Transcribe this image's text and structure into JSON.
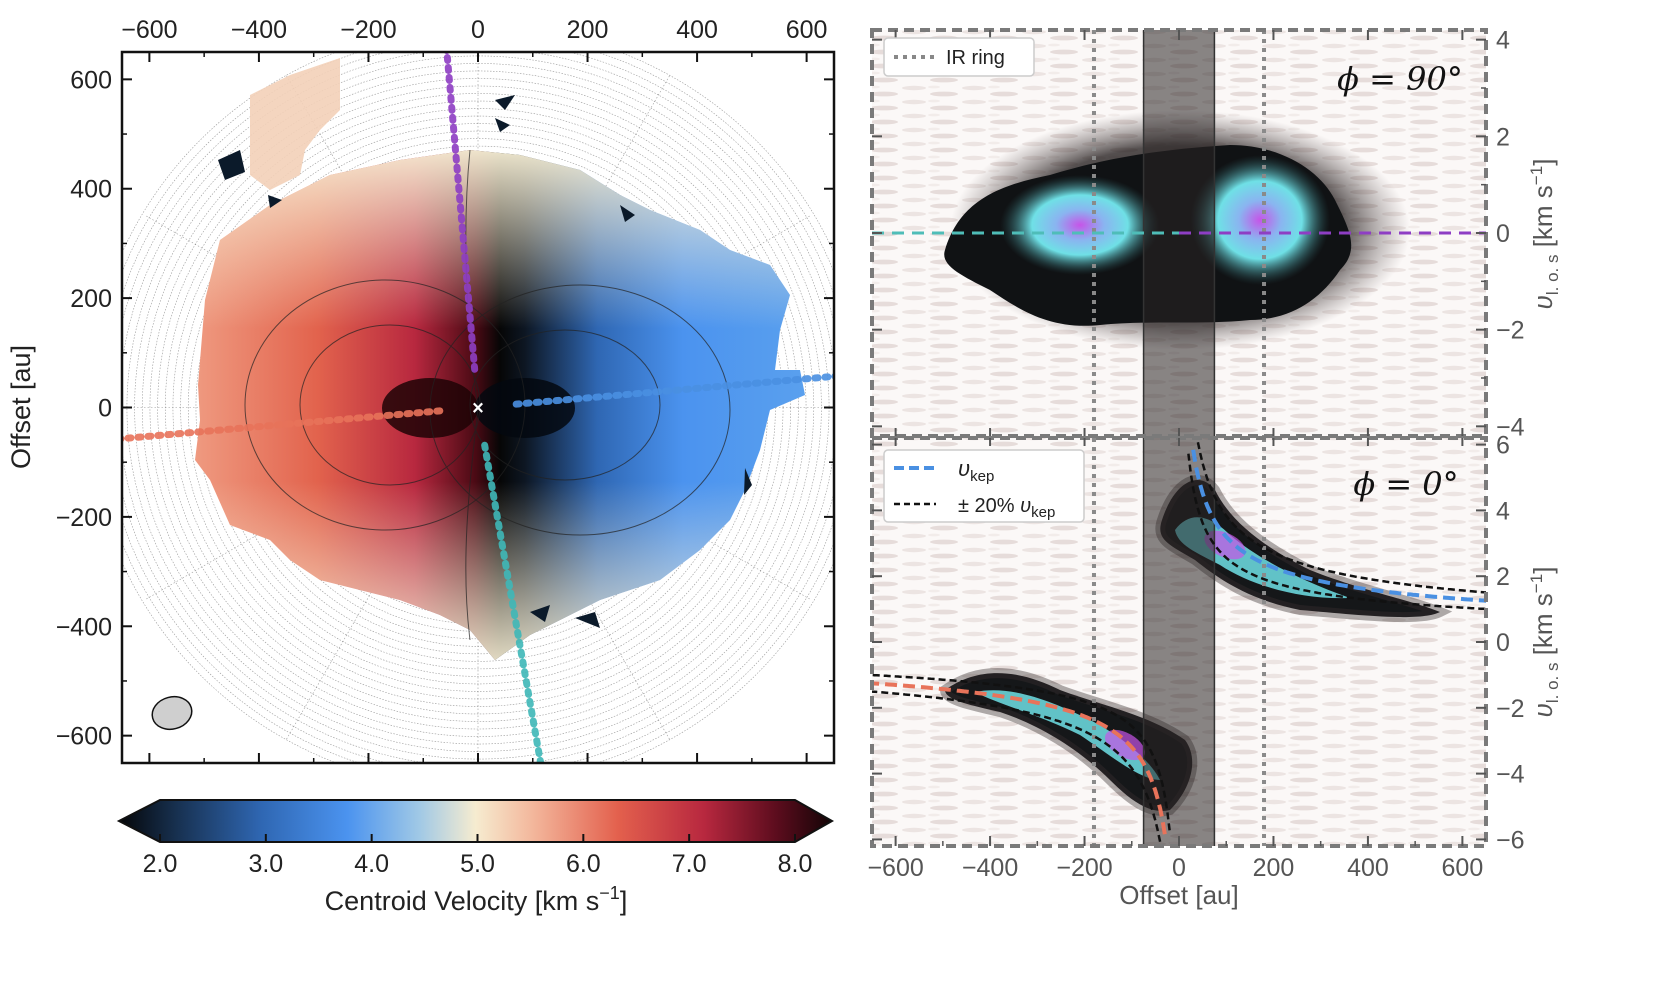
{
  "chart_data": [
    {
      "type": "heatmap",
      "panel": "moment-map",
      "xlim": [
        -650,
        650
      ],
      "ylim": [
        -650,
        650
      ],
      "x_ticks": [
        -600,
        -400,
        -200,
        0,
        200,
        400,
        600
      ],
      "y_ticks": [
        -600,
        -400,
        -200,
        0,
        200,
        400,
        600
      ],
      "ylabel": "Offset [au]",
      "x_axis_position": "top",
      "grid": "polar",
      "center_marker": "×",
      "colorbar": {
        "label_text": "Centroid Velocity [km s",
        "label_exp": "−1",
        "label_close": "]",
        "range": [
          2.0,
          8.0
        ],
        "ticks": [
          "2.0",
          "3.0",
          "4.0",
          "5.0",
          "6.0",
          "7.0",
          "8.0"
        ],
        "tick_values": [
          2.0,
          3.0,
          4.0,
          5.0,
          6.0,
          7.0,
          8.0
        ],
        "colormap": "diverging: black-blue-cream-red-black"
      },
      "cuts": [
        {
          "angle_deg": 95,
          "color": "#8E3EC4"
        },
        {
          "angle_deg": 5,
          "color": "#4A90E2"
        },
        {
          "angle_deg": -80,
          "color": "#3FB8B8"
        },
        {
          "angle_deg": 185,
          "color": "#E8735A"
        }
      ],
      "beam": "ellipse lower-left"
    },
    {
      "type": "heatmap",
      "panel": "pv-diagram-phi-90",
      "annotation": "ϕ = 90°",
      "xlim": [
        -650,
        650
      ],
      "ylim": [
        -4.2,
        4.2
      ],
      "y_ticks": [
        -4,
        -2,
        0,
        2,
        4
      ],
      "ylabel_main": "υ",
      "ylabel_sub": "l. o. s",
      "ylabel_unit": " [km s",
      "ylabel_exp": "−1",
      "ylabel_close": "]",
      "legend": {
        "position": "top-left",
        "items": [
          "IR ring"
        ]
      },
      "ir_ring_offsets": [
        -180,
        180
      ],
      "masked_band": [
        -75,
        75
      ],
      "zero_line_left_color": "#4FBDB8",
      "zero_line_right_color": "#8E3EC4"
    },
    {
      "type": "heatmap",
      "panel": "pv-diagram-phi-0",
      "annotation": "ϕ = 0°",
      "xlim": [
        -650,
        650
      ],
      "ylim": [
        -6.2,
        6.2
      ],
      "x_ticks": [
        -600,
        -400,
        -200,
        0,
        200,
        400,
        600
      ],
      "y_ticks": [
        -6,
        -4,
        -2,
        0,
        2,
        4,
        6
      ],
      "xlabel": "Offset [au]",
      "legend": {
        "position": "top-left",
        "items": [
          {
            "main": "υ",
            "sub": "kep",
            "pre": ""
          },
          {
            "main": "υ",
            "sub": "kep",
            "pre": "± 20% "
          }
        ]
      },
      "ir_ring_offsets": [
        -180,
        180
      ],
      "masked_band": [
        -75,
        75
      ],
      "keplerian_curve_colors": {
        "positive": "#4A90E2",
        "negative": "#E8735A"
      }
    }
  ],
  "colors": {
    "frame_dashed": "#7a7a7a",
    "axis_text": "#222222",
    "pv_axis_text": "#555555"
  }
}
